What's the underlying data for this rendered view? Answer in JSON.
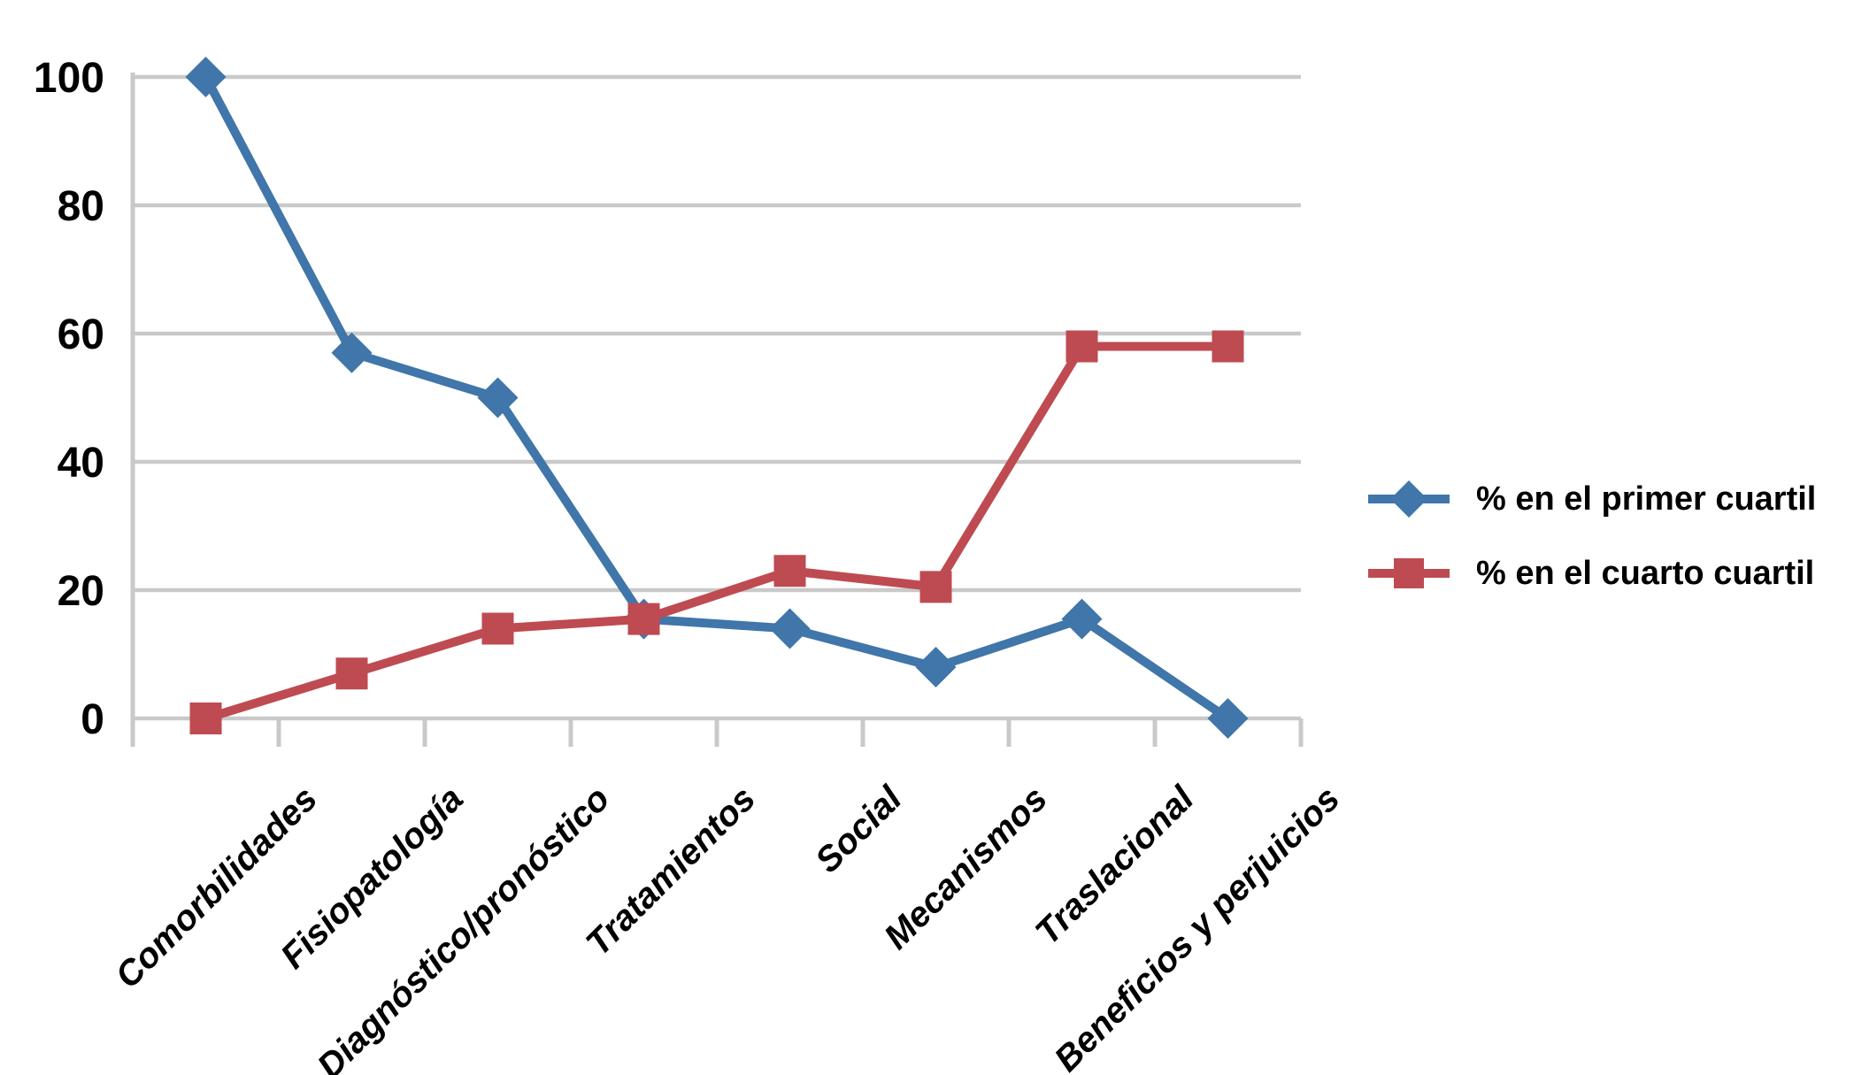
{
  "chart_data": {
    "type": "line",
    "title": "",
    "xlabel": "",
    "ylabel": "",
    "categories": [
      "Comorbilidades",
      "Fisiopatología",
      "Diagnóstico/pronóstico",
      "Tratamientos",
      "Social",
      "Mecanismos",
      "Traslacional",
      "Beneficios y perjuicios"
    ],
    "series": [
      {
        "name": "% en el primer cuartil",
        "marker": "diamond",
        "color": "#4076A9",
        "values": [
          100,
          57,
          50,
          15.5,
          14,
          8,
          15.5,
          0
        ]
      },
      {
        "name": "% en el cuarto cuartil",
        "marker": "square",
        "color": "#BE4B51",
        "values": [
          0,
          7,
          14,
          15.5,
          23,
          20.5,
          58,
          58
        ]
      }
    ],
    "ylim": [
      0,
      100
    ],
    "yticks": [
      0,
      20,
      40,
      60,
      80,
      100
    ],
    "grid": "horizontal-only",
    "legend_position": "center-right",
    "colors": {
      "gridline": "#C9C9C9",
      "axis": "#C9C9C9",
      "text": "#000000",
      "background": "#FFFFFF"
    }
  }
}
